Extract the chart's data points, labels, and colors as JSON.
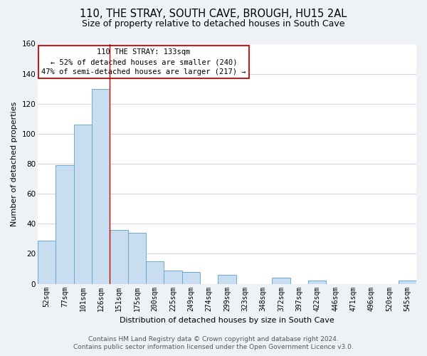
{
  "title": "110, THE STRAY, SOUTH CAVE, BROUGH, HU15 2AL",
  "subtitle": "Size of property relative to detached houses in South Cave",
  "xlabel": "Distribution of detached houses by size in South Cave",
  "ylabel": "Number of detached properties",
  "bar_labels": [
    "52sqm",
    "77sqm",
    "101sqm",
    "126sqm",
    "151sqm",
    "175sqm",
    "200sqm",
    "225sqm",
    "249sqm",
    "274sqm",
    "299sqm",
    "323sqm",
    "348sqm",
    "372sqm",
    "397sqm",
    "422sqm",
    "446sqm",
    "471sqm",
    "496sqm",
    "520sqm",
    "545sqm"
  ],
  "bar_values": [
    29,
    79,
    106,
    130,
    36,
    34,
    15,
    9,
    8,
    0,
    6,
    0,
    0,
    4,
    0,
    2,
    0,
    0,
    0,
    0,
    2
  ],
  "bar_color": "#c8ddef",
  "bar_edge_color": "#6aaad4",
  "highlight_bar_index": 3,
  "red_line_x": 3.5,
  "ylim": [
    0,
    160
  ],
  "yticks": [
    0,
    20,
    40,
    60,
    80,
    100,
    120,
    140,
    160
  ],
  "annotation_title": "110 THE STRAY: 133sqm",
  "annotation_line1": "← 52% of detached houses are smaller (240)",
  "annotation_line2": "47% of semi-detached houses are larger (217) →",
  "annotation_box_facecolor": "#ffffff",
  "annotation_box_edgecolor": "#cc0000",
  "footer_line1": "Contains HM Land Registry data © Crown copyright and database right 2024.",
  "footer_line2": "Contains public sector information licensed under the Open Government Licence v3.0.",
  "bg_color": "#eef2f7",
  "plot_bg_color": "#ffffff",
  "grid_color": "#d0d8e4",
  "title_fontsize": 10.5,
  "subtitle_fontsize": 9,
  "tick_fontsize": 7,
  "footer_fontsize": 6.5
}
